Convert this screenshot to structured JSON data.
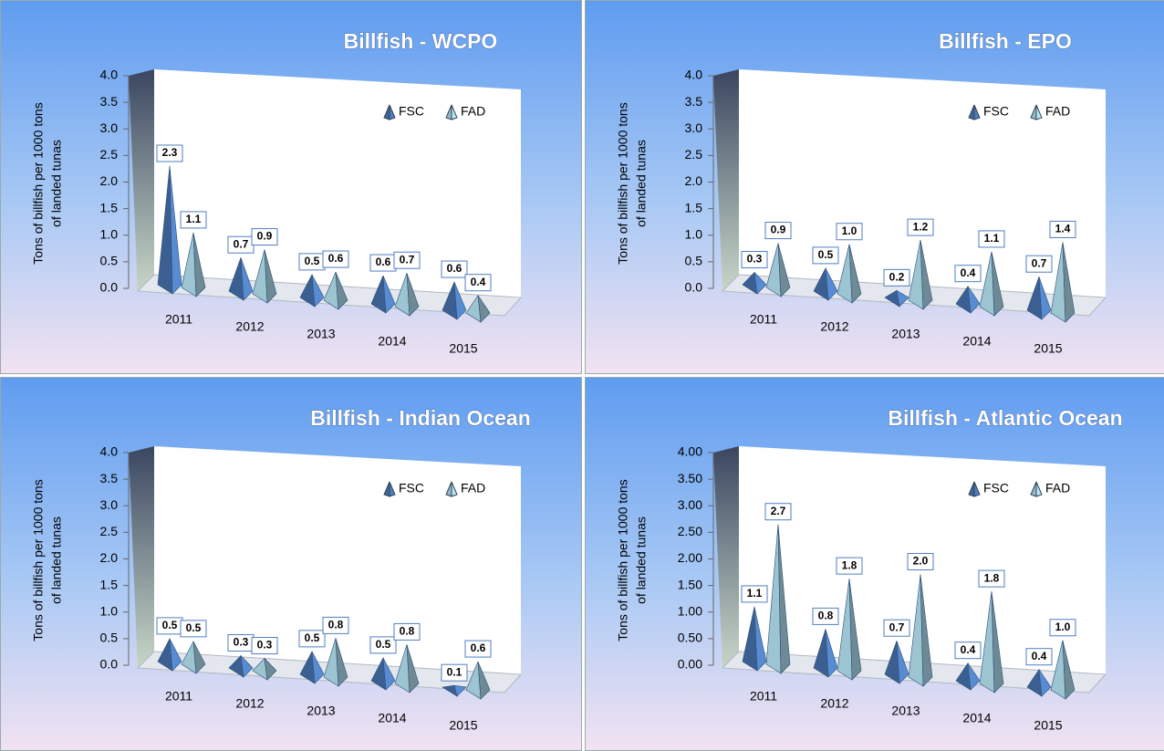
{
  "chart_data": [
    {
      "type": "pyramid",
      "title": "Billfish - WCPO",
      "y_label": [
        "Tons of billfish per 1000 tons",
        "of landed tunas"
      ],
      "categories": [
        "2011",
        "2012",
        "2013",
        "2014",
        "2015"
      ],
      "series": [
        {
          "name": "FSC",
          "color": "#4f7fc0",
          "values": [
            2.3,
            0.7,
            0.5,
            0.6,
            0.6
          ]
        },
        {
          "name": "FAD",
          "color": "#b8e6f6",
          "values": [
            1.1,
            0.9,
            0.6,
            0.7,
            0.4
          ]
        }
      ],
      "ylim": [
        0,
        4
      ],
      "yticks": [
        {
          "value": 0,
          "label": "0.0"
        },
        0.5,
        {
          "value": 1,
          "label": "1.0"
        },
        1.5,
        {
          "value": 2,
          "label": "2.0"
        },
        2.5,
        {
          "value": 3,
          "label": "3.0"
        },
        3.5,
        {
          "value": 4,
          "label": "4.0"
        }
      ],
      "legend": "upper right",
      "grid": false
    },
    {
      "type": "pyramid",
      "title": "Billfish - EPO",
      "y_label": [
        "Tons of billfish per 1000 tons",
        "of landed tunas"
      ],
      "categories": [
        "2011",
        "2012",
        "2013",
        "2014",
        "2015"
      ],
      "series": [
        {
          "name": "FSC",
          "color": "#4f7fc0",
          "values": [
            0.3,
            0.5,
            0.2,
            0.4,
            0.7
          ]
        },
        {
          "name": "FAD",
          "color": "#b8e6f6",
          "values": [
            0.9,
            1.0,
            1.2,
            1.1,
            1.4
          ],
          "value_labels": [
            "0.9",
            "1.0",
            "1.2",
            "1.1",
            "1.4"
          ]
        }
      ],
      "ylim": [
        0,
        4
      ],
      "yticks": [
        {
          "value": 0,
          "label": "0.0"
        },
        0.5,
        {
          "value": 1,
          "label": "1.0"
        },
        1.5,
        {
          "value": 2,
          "label": "2.0"
        },
        2.5,
        {
          "value": 3,
          "label": "3.0"
        },
        3.5,
        {
          "value": 4,
          "label": "4.0"
        }
      ],
      "legend": "upper right",
      "grid": false
    },
    {
      "type": "pyramid",
      "title": "Billfish - Indian Ocean",
      "y_label": [
        "Tons of billfish per 1000 tons",
        "of landed tunas"
      ],
      "categories": [
        "2011",
        "2012",
        "2013",
        "2014",
        "2015"
      ],
      "series": [
        {
          "name": "FSC",
          "color": "#4f7fc0",
          "values": [
            0.5,
            0.3,
            0.5,
            0.5,
            0.1
          ]
        },
        {
          "name": "FAD",
          "color": "#b8e6f6",
          "values": [
            0.5,
            0.3,
            0.8,
            0.8,
            0.6
          ]
        }
      ],
      "ylim": [
        0,
        4
      ],
      "yticks": [
        {
          "value": 0,
          "label": "0.0"
        },
        0.5,
        {
          "value": 1,
          "label": "1.0"
        },
        1.5,
        {
          "value": 2,
          "label": "2.0"
        },
        2.5,
        {
          "value": 3,
          "label": "3.0"
        },
        3.5,
        {
          "value": 4,
          "label": "4.0"
        }
      ],
      "legend": "upper right",
      "grid": false
    },
    {
      "type": "pyramid",
      "title": "Billfish - Atlantic Ocean",
      "y_label": [
        "Tons of billfish per 1000 tons",
        "of landed tunas"
      ],
      "categories": [
        "2011",
        "2012",
        "2013",
        "2014",
        "2015"
      ],
      "series": [
        {
          "name": "FSC",
          "color": "#4f7fc0",
          "values": [
            1.1,
            0.8,
            0.7,
            0.4,
            0.4
          ]
        },
        {
          "name": "FAD",
          "color": "#b8e6f6",
          "values": [
            2.7,
            1.8,
            2.0,
            1.8,
            1.0
          ],
          "value_labels": [
            "2.7",
            "1.8",
            "2.0",
            "1.8",
            "1.0"
          ]
        }
      ],
      "ylim": [
        0,
        4
      ],
      "yticks": [
        {
          "value": 0,
          "label": "0.00"
        },
        {
          "value": 0.5,
          "label": "0.50"
        },
        {
          "value": 1,
          "label": "1.00"
        },
        {
          "value": 1.5,
          "label": "1.50"
        },
        {
          "value": 2,
          "label": "2.00"
        },
        {
          "value": 2.5,
          "label": "2.50"
        },
        {
          "value": 3,
          "label": "3.00"
        },
        {
          "value": 3.5,
          "label": "3.50"
        },
        {
          "value": 4,
          "label": "4.00"
        }
      ],
      "legend": "upper right",
      "grid": false
    }
  ]
}
